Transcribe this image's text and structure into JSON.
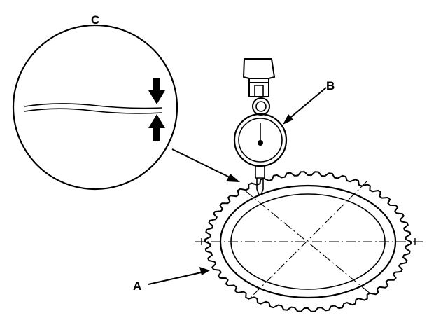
{
  "labels": {
    "a": "A",
    "b": "B",
    "c": "C"
  },
  "colors": {
    "ink": "#000000",
    "paper": "#ffffff"
  }
}
